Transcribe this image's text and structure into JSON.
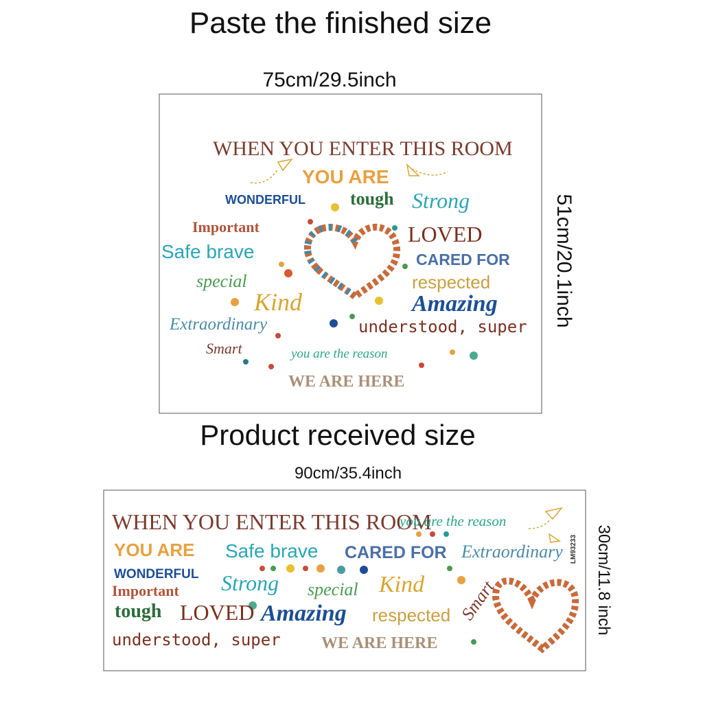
{
  "finished": {
    "title": "Paste the finished size",
    "width": "75cm/29.5inch",
    "height": "51cm/20.1inch",
    "words": [
      "WHEN YOU ENTER THIS ROOM",
      "YOU ARE",
      "WONDERFUL",
      "tough",
      "Strong",
      "Important",
      "LOVED",
      "Safe brave",
      "CARED FOR",
      "special",
      "respected",
      "Kind",
      "Amazing",
      "Extraordinary",
      "understood, super",
      "Smart",
      "you are the reason",
      "WE ARE HERE"
    ]
  },
  "received": {
    "title": "Product received size",
    "width": "90cm/35.4inch",
    "height": "30cm/11.8 inch",
    "code": "LM93233",
    "words": [
      "WHEN YOU ENTER THIS ROOM",
      "you are the reason",
      "YOU ARE",
      "Safe brave",
      "CARED FOR",
      "Extraordinary",
      "WONDERFUL",
      "Strong",
      "special",
      "Kind",
      "Important",
      "Smart",
      "tough",
      "LOVED",
      "Amazing",
      "respected",
      "understood, super",
      "WE ARE HERE"
    ]
  }
}
